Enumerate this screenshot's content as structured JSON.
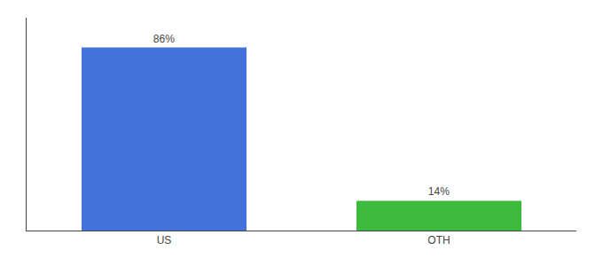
{
  "chart_data": {
    "type": "bar",
    "categories": [
      "US",
      "OTH"
    ],
    "values": [
      86,
      14
    ],
    "value_labels": [
      "86%",
      "14%"
    ],
    "data_labels": true,
    "colors": [
      "#4472db",
      "#3dbb3d"
    ],
    "ylim": [
      0,
      100
    ],
    "yticks": [],
    "grid": false,
    "tick_labels": "x"
  }
}
